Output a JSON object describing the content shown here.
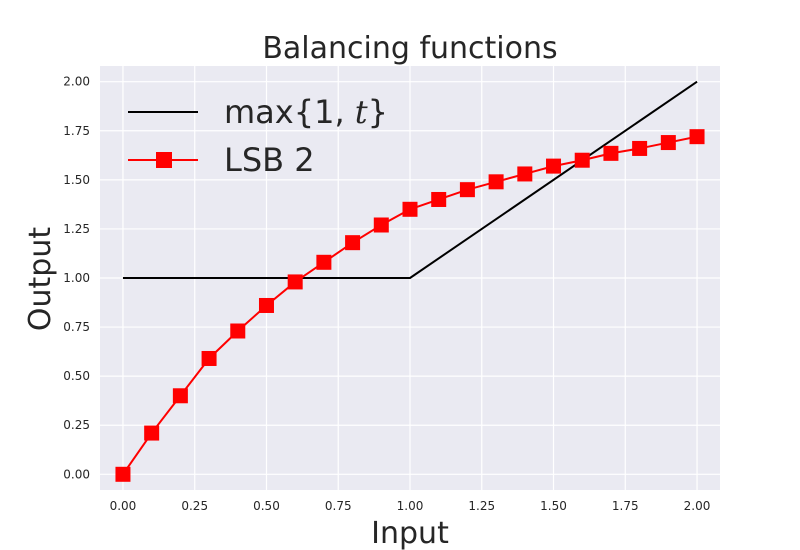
{
  "chart_data": {
    "type": "line",
    "title": "Balancing functions",
    "xlabel": "Input",
    "ylabel": "Output",
    "xlim": [
      -0.08,
      2.08
    ],
    "ylim": [
      -0.08,
      2.08
    ],
    "xticks": [
      "0.00",
      "0.25",
      "0.50",
      "0.75",
      "1.00",
      "1.25",
      "1.50",
      "1.75",
      "2.00"
    ],
    "yticks": [
      "0.00",
      "0.25",
      "0.50",
      "0.75",
      "1.00",
      "1.25",
      "1.50",
      "1.75",
      "2.00"
    ],
    "grid": true,
    "legend_position": "top-left",
    "series": [
      {
        "name": "max{1, t}",
        "name_display": {
          "prefix": "max{1, ",
          "var": "t",
          "suffix": "}"
        },
        "color": "#000000",
        "marker": "none",
        "x": [
          0.0,
          1.0,
          2.0
        ],
        "y": [
          1.0,
          1.0,
          2.0
        ]
      },
      {
        "name": "LSB 2",
        "color": "#ff0000",
        "marker": "square",
        "x": [
          0.0,
          0.1,
          0.2,
          0.3,
          0.4,
          0.5,
          0.6,
          0.7,
          0.8,
          0.9,
          1.0,
          1.1,
          1.2,
          1.3,
          1.4,
          1.5,
          1.6,
          1.7,
          1.8,
          1.9,
          2.0
        ],
        "y": [
          0.0,
          0.21,
          0.4,
          0.59,
          0.73,
          0.86,
          0.98,
          1.08,
          1.18,
          1.27,
          1.35,
          1.4,
          1.45,
          1.49,
          1.53,
          1.57,
          1.6,
          1.635,
          1.66,
          1.69,
          1.72
        ]
      }
    ]
  },
  "colors": {
    "plot_background": "#eaeaf2",
    "grid": "#ffffff",
    "text": "#262626"
  }
}
